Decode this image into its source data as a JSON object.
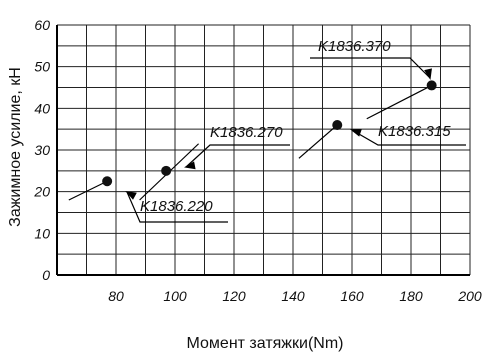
{
  "chart_data": {
    "type": "scatter",
    "xlabel": "Момент затяжки(Nm)",
    "ylabel": "Зажимное усилие, кН",
    "xlim": [
      60,
      200
    ],
    "ylim": [
      0,
      60
    ],
    "xticks": [
      80,
      100,
      120,
      140,
      160,
      180,
      200
    ],
    "yticks": [
      0,
      10,
      20,
      30,
      40,
      50,
      60
    ],
    "grid": true,
    "series": [
      {
        "name": "K1836.220",
        "point": {
          "x": 77,
          "y": 22.5
        },
        "trend": [
          {
            "x": 64,
            "y": 18
          },
          {
            "x": 77,
            "y": 22.5
          }
        ]
      },
      {
        "name": "K1836.270",
        "point": {
          "x": 97,
          "y": 25
        },
        "trend": [
          {
            "x": 88,
            "y": 18
          },
          {
            "x": 108,
            "y": 31.5
          }
        ]
      },
      {
        "name": "K1836.315",
        "point": {
          "x": 155,
          "y": 36
        },
        "trend": [
          {
            "x": 142,
            "y": 28
          },
          {
            "x": 155,
            "y": 36
          }
        ]
      },
      {
        "name": "K1836.370",
        "point": {
          "x": 187,
          "y": 45.5
        },
        "trend": [
          {
            "x": 165,
            "y": 37.5
          },
          {
            "x": 187,
            "y": 45.5
          }
        ]
      }
    ]
  }
}
